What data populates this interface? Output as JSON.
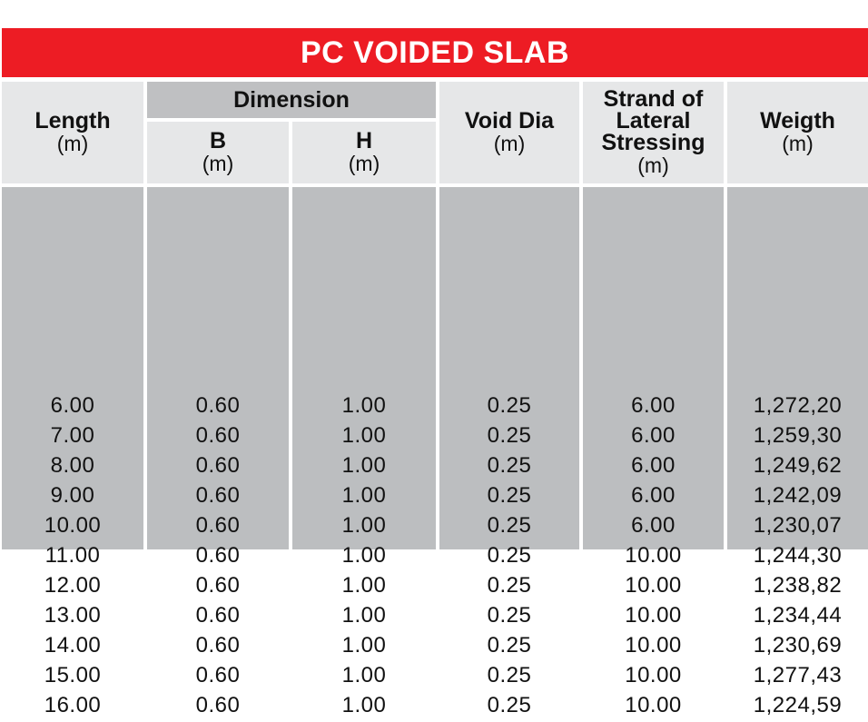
{
  "title": "PC VOIDED SLAB",
  "colors": {
    "title_bg": "#ed1c24",
    "header_bg": "#e6e7e8",
    "group_header_bg": "#bfc0c2",
    "body_bg": "#bcbec0"
  },
  "header": {
    "group": "Dimension",
    "columns": [
      {
        "name": "Length",
        "unit": "(m)"
      },
      {
        "name": "B",
        "unit": "(m)"
      },
      {
        "name": "H",
        "unit": "(m)"
      },
      {
        "name": "Void Dia",
        "unit": "(m)"
      },
      {
        "name": "Strand of Lateral Stressing",
        "unit": "(m)"
      },
      {
        "name": "Weigth",
        "unit": "(m)"
      }
    ]
  },
  "columns": [
    [
      "6.00",
      "7.00",
      "8.00",
      "9.00",
      "10.00",
      "11.00",
      "12.00",
      "13.00",
      "14.00",
      "15.00",
      "16.00"
    ],
    [
      "0.60",
      "0.60",
      "0.60",
      "0.60",
      "0.60",
      "0.60",
      "0.60",
      "0.60",
      "0.60",
      "0.60",
      "0.60"
    ],
    [
      "1.00",
      "1.00",
      "1.00",
      "1.00",
      "1.00",
      "1.00",
      "1.00",
      "1.00",
      "1.00",
      "1.00",
      "1.00"
    ],
    [
      "0.25",
      "0.25",
      "0.25",
      "0.25",
      "0.25",
      "0.25",
      "0.25",
      "0.25",
      "0.25",
      "0.25",
      "0.25"
    ],
    [
      "6.00",
      "6.00",
      "6.00",
      "6.00",
      "6.00",
      "10.00",
      "10.00",
      "10.00",
      "10.00",
      "10.00",
      "10.00"
    ],
    [
      "1,272,20",
      "1,259,30",
      "1,249,62",
      "1,242,09",
      "1,230,07",
      "1,244,30",
      "1,238,82",
      "1,234,44",
      "1,230,69",
      "1,277,43",
      "1,224,59"
    ]
  ]
}
